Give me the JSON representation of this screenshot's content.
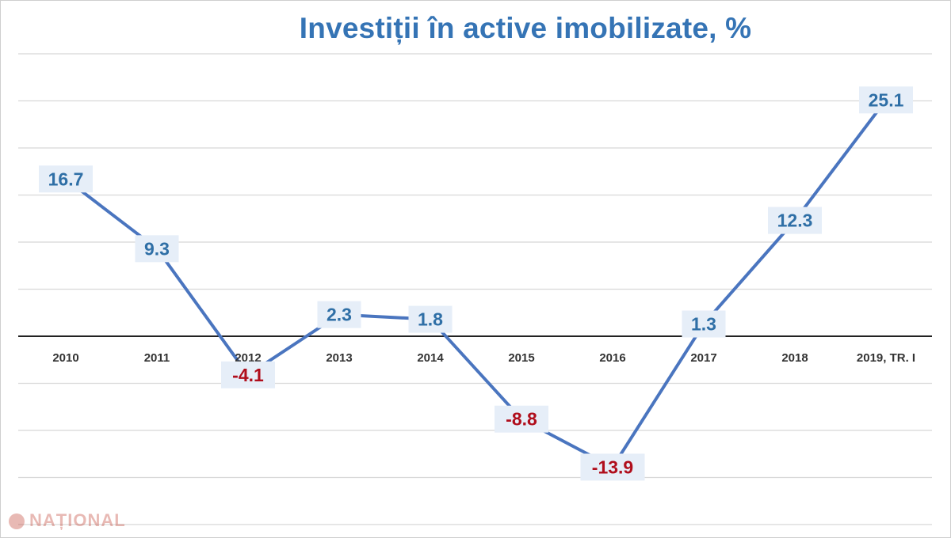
{
  "colors": {
    "title": "#3574b5",
    "line": "#4a75bf",
    "positive_label": "#2f6fa6",
    "negative_label": "#b00e1c",
    "label_box": "#e6eef8",
    "gridline": "#d8d8d8",
    "zero_axis": "#222222"
  },
  "watermark": {
    "text": "NAȚIONAL",
    "icon": "logo-circle-icon"
  },
  "chart_data": {
    "type": "line",
    "title": "Investiții în active imobilizate, %",
    "categories": [
      "2010",
      "2011",
      "2012",
      "2013",
      "2014",
      "2015",
      "2016",
      "2017",
      "2018",
      "2019, TR. I"
    ],
    "series": [
      {
        "values": [
          16.7,
          9.3,
          -4.1,
          2.3,
          1.8,
          -8.8,
          -13.9,
          1.3,
          12.3,
          25.1
        ]
      }
    ],
    "value_labels": [
      "16.7",
      "9.3",
      "-4.1",
      "2.3",
      "1.8",
      "-8.8",
      "-13.9",
      "1.3",
      "12.3",
      "25.1"
    ],
    "ylim": [
      -20,
      30
    ],
    "gridlines": true,
    "legend": "none"
  }
}
